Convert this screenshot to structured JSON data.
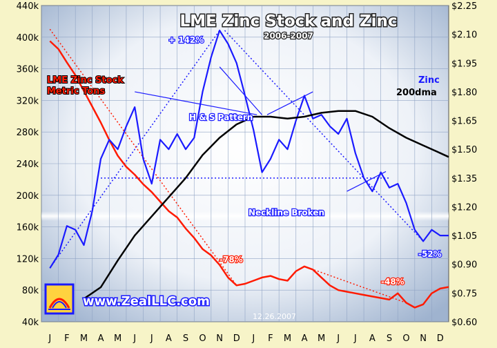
{
  "chart_data": {
    "type": "line",
    "title": "LME Zinc Stock and Zinc",
    "subtitle": "2006-2007",
    "watermark_url": "www.ZealLLC.com",
    "date_stamp": "12.26.2007",
    "x_labels": [
      "J",
      "F",
      "M",
      "A",
      "M",
      "J",
      "J",
      "A",
      "S",
      "O",
      "N",
      "D",
      "J",
      "F",
      "M",
      "A",
      "M",
      "J",
      "J",
      "A",
      "S",
      "O",
      "N",
      "D"
    ],
    "y_left": {
      "ticks": [
        "40k",
        "80k",
        "120k",
        "160k",
        "200k",
        "240k",
        "280k",
        "320k",
        "360k",
        "400k",
        "440k"
      ],
      "range": [
        40,
        440
      ],
      "unit": "k metric tons"
    },
    "y_right": {
      "ticks": [
        "$0.60",
        "$0.75",
        "$0.90",
        "$1.05",
        "$1.20",
        "$1.35",
        "$1.50",
        "$1.65",
        "$1.80",
        "$1.95",
        "$2.10",
        "$2.25"
      ],
      "range": [
        0.6,
        2.25
      ]
    },
    "grid": true,
    "series": [
      {
        "name": "LME Zinc Stock Metric Tons",
        "axis": "left",
        "color": "#ff1a00",
        "points": [
          [
            0,
            395
          ],
          [
            0.5,
            385
          ],
          [
            1,
            368
          ],
          [
            1.5,
            352
          ],
          [
            2,
            332
          ],
          [
            2.5,
            312
          ],
          [
            3,
            292
          ],
          [
            3.5,
            270
          ],
          [
            4,
            250
          ],
          [
            4.5,
            236
          ],
          [
            5,
            226
          ],
          [
            5.5,
            214
          ],
          [
            6,
            204
          ],
          [
            6.5,
            192
          ],
          [
            7,
            180
          ],
          [
            7.5,
            172
          ],
          [
            8,
            158
          ],
          [
            8.5,
            146
          ],
          [
            9,
            132
          ],
          [
            9.5,
            124
          ],
          [
            10,
            112
          ],
          [
            10.5,
            96
          ],
          [
            11,
            86
          ],
          [
            11.5,
            88
          ],
          [
            12,
            92
          ],
          [
            12.5,
            96
          ],
          [
            13,
            98
          ],
          [
            13.5,
            94
          ],
          [
            14,
            92
          ],
          [
            14.5,
            104
          ],
          [
            15,
            110
          ],
          [
            15.5,
            106
          ],
          [
            16,
            96
          ],
          [
            16.5,
            86
          ],
          [
            17,
            80
          ],
          [
            17.5,
            78
          ],
          [
            18,
            76
          ],
          [
            18.5,
            74
          ],
          [
            19,
            72
          ],
          [
            19.5,
            70
          ],
          [
            20,
            68
          ],
          [
            20.5,
            76
          ],
          [
            21,
            64
          ],
          [
            21.5,
            58
          ],
          [
            22,
            62
          ],
          [
            22.5,
            76
          ],
          [
            23,
            82
          ],
          [
            23.5,
            84
          ]
        ]
      },
      {
        "name": "Zinc",
        "axis": "right",
        "color": "#1a1aff",
        "points": [
          [
            0,
            0.88
          ],
          [
            0.5,
            0.95
          ],
          [
            1,
            1.1
          ],
          [
            1.5,
            1.08
          ],
          [
            2,
            1.0
          ],
          [
            2.5,
            1.18
          ],
          [
            3,
            1.45
          ],
          [
            3.5,
            1.55
          ],
          [
            4,
            1.5
          ],
          [
            4.5,
            1.62
          ],
          [
            5,
            1.72
          ],
          [
            5.5,
            1.45
          ],
          [
            6,
            1.32
          ],
          [
            6.5,
            1.55
          ],
          [
            7,
            1.5
          ],
          [
            7.5,
            1.58
          ],
          [
            8,
            1.5
          ],
          [
            8.5,
            1.56
          ],
          [
            9,
            1.8
          ],
          [
            9.5,
            1.98
          ],
          [
            10,
            2.12
          ],
          [
            10.5,
            2.05
          ],
          [
            11,
            1.95
          ],
          [
            11.5,
            1.78
          ],
          [
            12,
            1.6
          ],
          [
            12.5,
            1.38
          ],
          [
            13,
            1.45
          ],
          [
            13.5,
            1.55
          ],
          [
            14,
            1.5
          ],
          [
            14.5,
            1.65
          ],
          [
            15,
            1.78
          ],
          [
            15.5,
            1.66
          ],
          [
            16,
            1.68
          ],
          [
            16.5,
            1.62
          ],
          [
            17,
            1.58
          ],
          [
            17.5,
            1.66
          ],
          [
            18,
            1.48
          ],
          [
            18.5,
            1.35
          ],
          [
            19,
            1.28
          ],
          [
            19.5,
            1.38
          ],
          [
            20,
            1.3
          ],
          [
            20.5,
            1.32
          ],
          [
            21,
            1.22
          ],
          [
            21.5,
            1.08
          ],
          [
            22,
            1.02
          ],
          [
            22.5,
            1.08
          ],
          [
            23,
            1.05
          ],
          [
            23.5,
            1.05
          ]
        ]
      },
      {
        "name": "200dma",
        "axis": "right",
        "color": "#000000",
        "points": [
          [
            2,
            0.72
          ],
          [
            3,
            0.78
          ],
          [
            4,
            0.92
          ],
          [
            5,
            1.05
          ],
          [
            6,
            1.15
          ],
          [
            7,
            1.25
          ],
          [
            8,
            1.35
          ],
          [
            9,
            1.47
          ],
          [
            10,
            1.56
          ],
          [
            11,
            1.63
          ],
          [
            12,
            1.67
          ],
          [
            13,
            1.67
          ],
          [
            14,
            1.66
          ],
          [
            15,
            1.67
          ],
          [
            16,
            1.69
          ],
          [
            17,
            1.7
          ],
          [
            18,
            1.7
          ],
          [
            19,
            1.67
          ],
          [
            20,
            1.61
          ],
          [
            21,
            1.56
          ],
          [
            22,
            1.52
          ],
          [
            23,
            1.48
          ],
          [
            23.5,
            1.46
          ]
        ]
      }
    ],
    "annotations": {
      "stock_label": "LME Zinc Stock\nMetric Tons",
      "zinc_label": "Zinc",
      "dma_label": "200dma",
      "pct_up": "+ 142%",
      "hs_pattern": "H & S Pattern",
      "neckline": "Neckline Broken",
      "pct_zinc_down": "-52%",
      "pct_stock_down1": "-78%",
      "pct_stock_down2": "-48%"
    }
  }
}
